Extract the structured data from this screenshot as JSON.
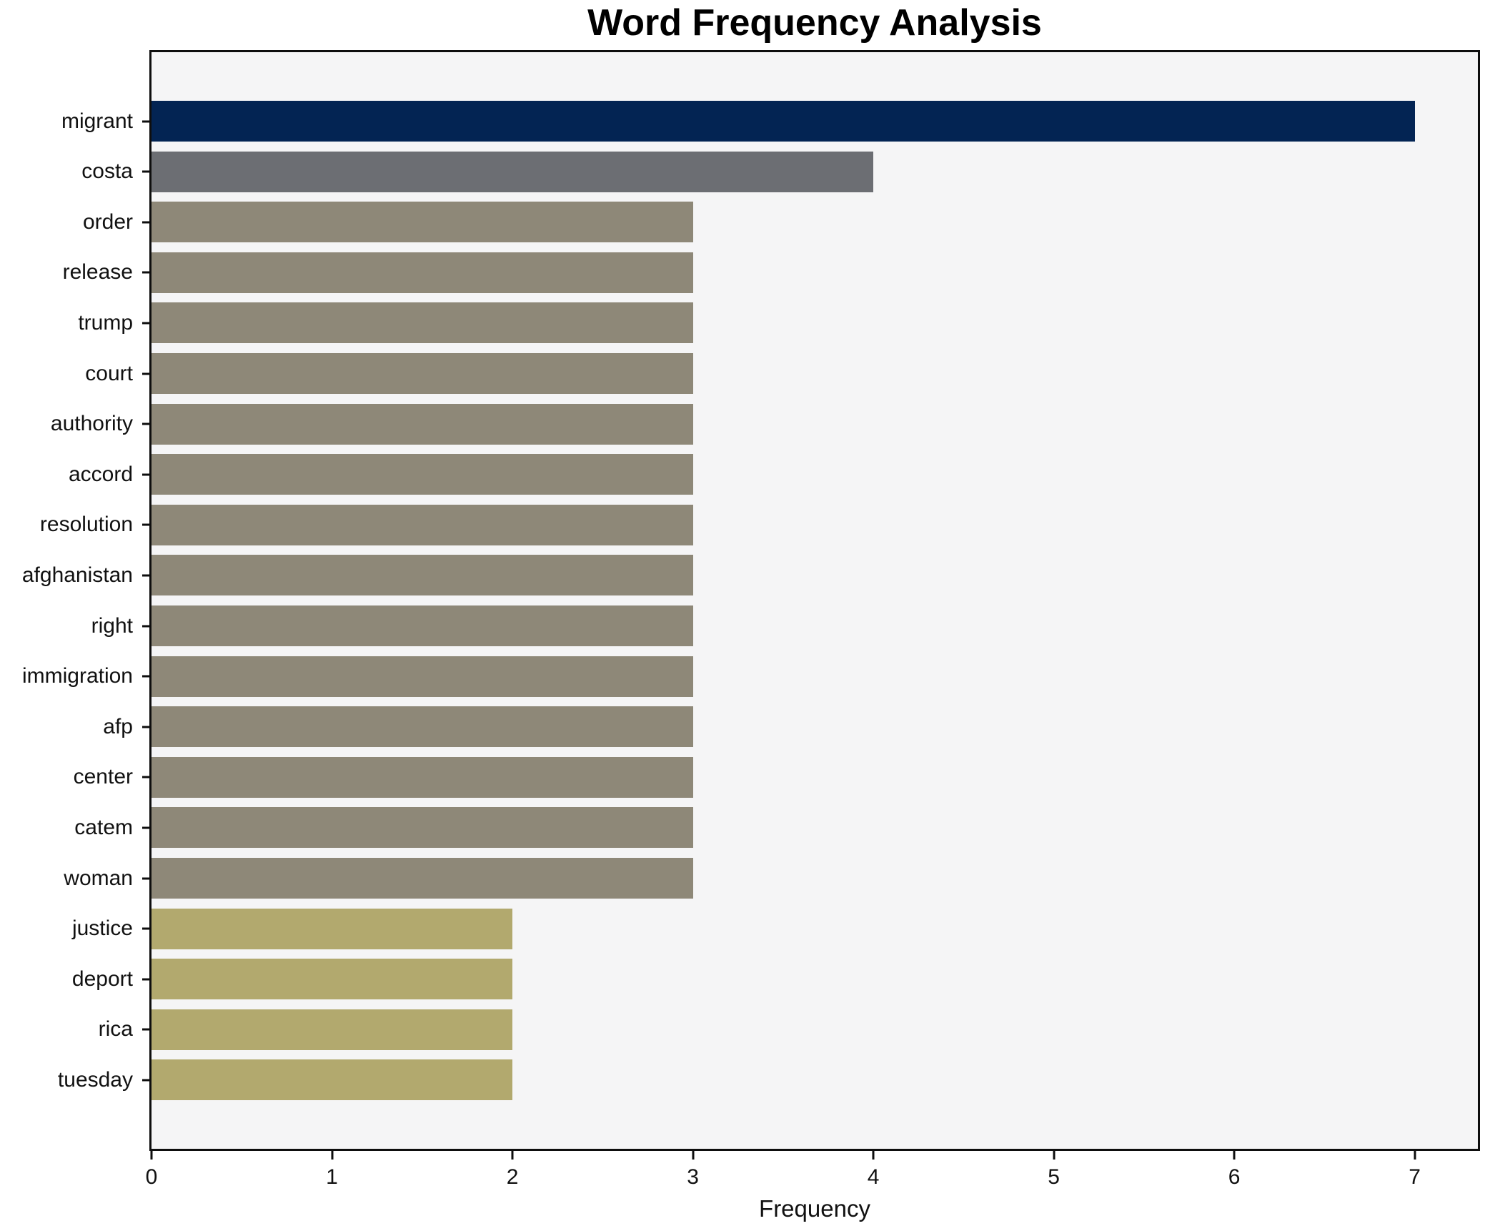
{
  "title": "Word Frequency Analysis",
  "chart_data": {
    "type": "bar",
    "orientation": "horizontal",
    "title": "Word Frequency Analysis",
    "xlabel": "Frequency",
    "ylabel": "",
    "categories": [
      "migrant",
      "costa",
      "order",
      "release",
      "trump",
      "court",
      "authority",
      "accord",
      "resolution",
      "afghanistan",
      "right",
      "immigration",
      "afp",
      "center",
      "catem",
      "woman",
      "justice",
      "deport",
      "rica",
      "tuesday"
    ],
    "values": [
      7,
      4,
      3,
      3,
      3,
      3,
      3,
      3,
      3,
      3,
      3,
      3,
      3,
      3,
      3,
      3,
      2,
      2,
      2,
      2
    ],
    "bar_colors": [
      "#032453",
      "#6c6e73",
      "#8e8878",
      "#8e8878",
      "#8e8878",
      "#8e8878",
      "#8e8878",
      "#8e8878",
      "#8e8878",
      "#8e8878",
      "#8e8878",
      "#8e8878",
      "#8e8878",
      "#8e8878",
      "#8e8878",
      "#8e8878",
      "#b2a96e",
      "#b2a96e",
      "#b2a96e",
      "#b2a96e"
    ],
    "x_ticks": [
      "0",
      "1",
      "2",
      "3",
      "4",
      "5",
      "6",
      "7"
    ],
    "xlim": [
      0,
      7.35
    ],
    "grid": false,
    "legend": null,
    "colors": {
      "navy": "#032453",
      "gray": "#6c6e73",
      "olive": "#8e8878",
      "khaki": "#b2a96e",
      "plot_background": "#f5f5f6",
      "figure_background": "#ffffff",
      "spine": "#0e0e0e",
      "text": "#111111"
    }
  }
}
